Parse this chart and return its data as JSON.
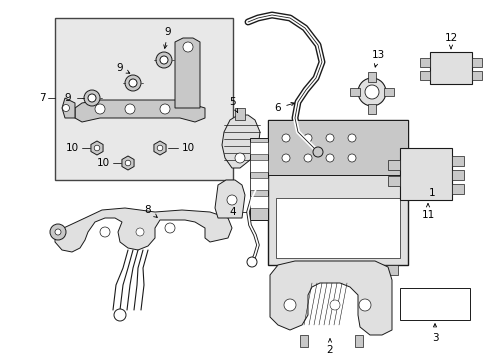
{
  "bg_color": "#ffffff",
  "line_color": "#1a1a1a",
  "gray_fill": "#c8c8c8",
  "light_gray": "#e0e0e0",
  "inset_fill": "#e8e8e8",
  "figsize": [
    4.89,
    3.6
  ],
  "dpi": 100,
  "fw": 489,
  "fh": 360
}
